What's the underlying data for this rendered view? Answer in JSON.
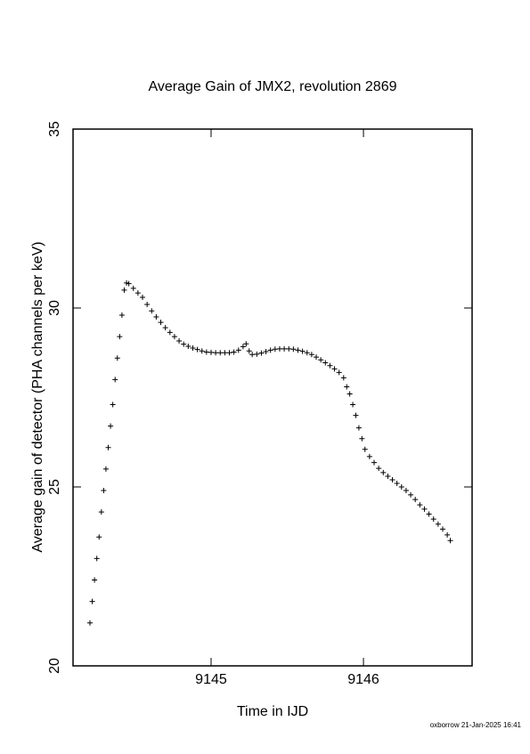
{
  "chart_data": {
    "type": "scatter",
    "title": "Average Gain of JMX2, revolution 2869",
    "xlabel": "Time in IJD",
    "ylabel": "Average gain of detector (PHA channels per keV)",
    "footer": "oxborrow 21-Jan-2025 16:41",
    "xlim": [
      9144.094,
      9146.713
    ],
    "xticks": [
      9145,
      9146
    ],
    "ylim": [
      20,
      35
    ],
    "yticks": [
      20,
      25,
      30,
      35
    ],
    "color": "#000000",
    "marker": "plus",
    "x": [
      9144.205,
      9144.22,
      9144.235,
      9144.25,
      9144.265,
      9144.28,
      9144.295,
      9144.31,
      9144.325,
      9144.34,
      9144.355,
      9144.37,
      9144.385,
      9144.4,
      9144.415,
      9144.43,
      9144.445,
      9144.46,
      9144.49,
      9144.52,
      9144.55,
      9144.58,
      9144.61,
      9144.64,
      9144.67,
      9144.7,
      9144.73,
      9144.76,
      9144.79,
      9144.82,
      9144.85,
      9144.88,
      9144.91,
      9144.94,
      9144.97,
      9145.0,
      9145.03,
      9145.06,
      9145.09,
      9145.12,
      9145.15,
      9145.18,
      9145.21,
      9145.23,
      9145.25,
      9145.27,
      9145.3,
      9145.33,
      9145.36,
      9145.39,
      9145.42,
      9145.45,
      9145.48,
      9145.51,
      9145.54,
      9145.57,
      9145.6,
      9145.63,
      9145.66,
      9145.69,
      9145.72,
      9145.75,
      9145.78,
      9145.81,
      9145.84,
      9145.87,
      9145.89,
      9145.91,
      9145.93,
      9145.95,
      9145.97,
      9145.99,
      9146.01,
      9146.04,
      9146.07,
      9146.1,
      9146.13,
      9146.16,
      9146.19,
      9146.22,
      9146.25,
      9146.28,
      9146.31,
      9146.34,
      9146.37,
      9146.4,
      9146.43,
      9146.46,
      9146.49,
      9146.52,
      9146.55,
      9146.57
    ],
    "values": [
      21.2,
      21.8,
      22.4,
      23.0,
      23.6,
      24.3,
      24.9,
      25.5,
      26.1,
      26.7,
      27.3,
      28.0,
      28.6,
      29.2,
      29.8,
      30.5,
      30.7,
      30.68,
      30.55,
      30.42,
      30.3,
      30.1,
      29.92,
      29.75,
      29.6,
      29.45,
      29.32,
      29.2,
      29.08,
      28.99,
      28.93,
      28.88,
      28.84,
      28.8,
      28.77,
      28.76,
      28.75,
      28.75,
      28.75,
      28.75,
      28.77,
      28.82,
      28.92,
      29.0,
      28.8,
      28.7,
      28.71,
      28.74,
      28.78,
      28.82,
      28.85,
      28.86,
      28.86,
      28.86,
      28.85,
      28.82,
      28.79,
      28.75,
      28.7,
      28.63,
      28.55,
      28.47,
      28.39,
      28.3,
      28.2,
      28.05,
      27.8,
      27.6,
      27.3,
      27.0,
      26.65,
      26.35,
      26.05,
      25.85,
      25.68,
      25.52,
      25.4,
      25.3,
      25.2,
      25.1,
      25.0,
      24.9,
      24.78,
      24.65,
      24.5,
      24.38,
      24.24,
      24.1,
      23.96,
      23.82,
      23.66,
      23.5
    ]
  }
}
